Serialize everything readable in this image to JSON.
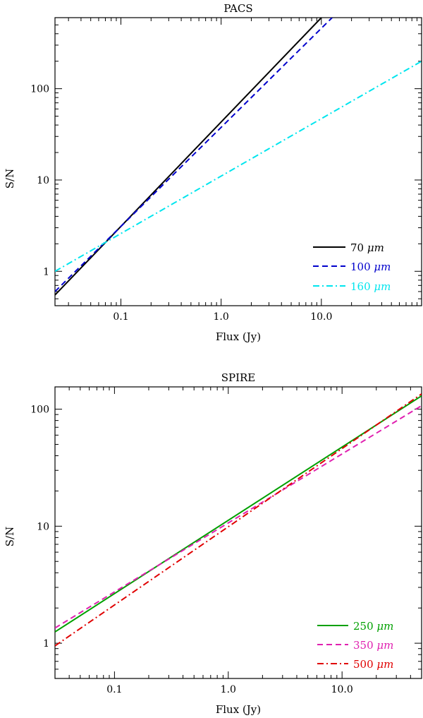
{
  "chart_data": [
    {
      "type": "line",
      "title": "PACS",
      "xlabel": "Flux (Jy)",
      "ylabel": "S/N",
      "xscale": "log",
      "yscale": "log",
      "xlim": [
        0.022,
        100
      ],
      "ylim": [
        0.42,
        600
      ],
      "xticks": [
        {
          "value": 0.1,
          "label": "0.1"
        },
        {
          "value": 1,
          "label": "1.0"
        },
        {
          "value": 10,
          "label": "10.0"
        }
      ],
      "yticks": [
        {
          "value": 1,
          "label": "1"
        },
        {
          "value": 10,
          "label": "10"
        },
        {
          "value": 100,
          "label": "100"
        }
      ],
      "legend_position": "bottom-right",
      "series": [
        {
          "name": "70 μm",
          "label_value": "70",
          "color": "#000000",
          "dash": "solid",
          "x": [
            0.022,
            10.0
          ],
          "y": [
            0.55,
            600
          ]
        },
        {
          "name": "100 μm",
          "label_value": "100",
          "color": "#0000cc",
          "dash": "dashed",
          "x": [
            0.022,
            12.8
          ],
          "y": [
            0.6,
            600
          ]
        },
        {
          "name": "160 μm",
          "label_value": "160",
          "color": "#00e5ee",
          "dash": "dashdot",
          "x": [
            0.022,
            100
          ],
          "y": [
            1.0,
            200
          ]
        }
      ]
    },
    {
      "type": "line",
      "title": "SPIRE",
      "xlabel": "Flux (Jy)",
      "ylabel": "S/N",
      "xscale": "log",
      "yscale": "log",
      "xlim": [
        0.03,
        50
      ],
      "ylim": [
        0.5,
        155
      ],
      "xticks": [
        {
          "value": 0.1,
          "label": "0.1"
        },
        {
          "value": 1,
          "label": "1.0"
        },
        {
          "value": 10,
          "label": "10.0"
        }
      ],
      "yticks": [
        {
          "value": 1,
          "label": "1"
        },
        {
          "value": 10,
          "label": "10"
        },
        {
          "value": 100,
          "label": "100"
        }
      ],
      "legend_position": "bottom-right",
      "series": [
        {
          "name": "250 μm",
          "label_value": "250",
          "color": "#00a000",
          "dash": "solid",
          "x": [
            0.03,
            50
          ],
          "y": [
            1.25,
            130
          ]
        },
        {
          "name": "350 μm",
          "label_value": "350",
          "color": "#e020b0",
          "dash": "dashed",
          "x": [
            0.03,
            50
          ],
          "y": [
            1.35,
            107
          ]
        },
        {
          "name": "500 μm",
          "label_value": "500",
          "color": "#e00000",
          "dash": "dashdot",
          "x": [
            0.03,
            50
          ],
          "y": [
            0.95,
            135
          ]
        }
      ]
    }
  ],
  "legend_unit": "μm"
}
